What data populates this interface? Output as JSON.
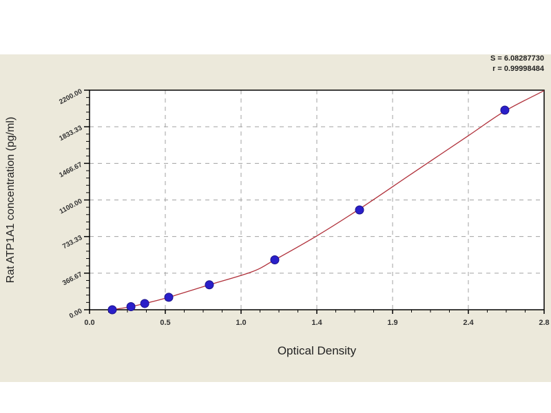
{
  "chart_data": {
    "type": "scatter",
    "title": "",
    "xlabel": "Optical Density",
    "ylabel": "Rat ATP1A1 concentration (pg/ml)",
    "xlim": [
      0,
      2.8
    ],
    "ylim": [
      0,
      2200
    ],
    "x_tick_labels": [
      "0.0",
      "0.5",
      "1.0",
      "1.4",
      "1.9",
      "2.4",
      "2.8"
    ],
    "y_tick_labels": [
      "0.00",
      "366.67",
      "733.33",
      "1100.00",
      "1466.67",
      "1833.33",
      "2200.00"
    ],
    "grid": true,
    "annotations": [
      "S = 6.08287730",
      "r = 0.99998484"
    ],
    "points": {
      "x": [
        0.14,
        0.255,
        0.34,
        0.488,
        0.738,
        1.141,
        1.663,
        2.558
      ],
      "y": [
        0,
        31.25,
        62.5,
        125,
        250,
        500,
        1000,
        2000
      ]
    },
    "fit_curve": {
      "x": [
        0.14,
        0.255,
        0.34,
        0.488,
        0.738,
        1.0,
        1.141,
        1.4,
        1.663,
        2.0,
        2.33,
        2.558,
        2.8
      ],
      "y": [
        0,
        31.25,
        62.5,
        125,
        250,
        380,
        500,
        740,
        1010,
        1380,
        1740,
        1990,
        2195
      ]
    },
    "colors": {
      "points": "#2a1fc9",
      "curve": "#b0303a",
      "grid": "#a0a0a0",
      "background": "#ece9db"
    }
  }
}
